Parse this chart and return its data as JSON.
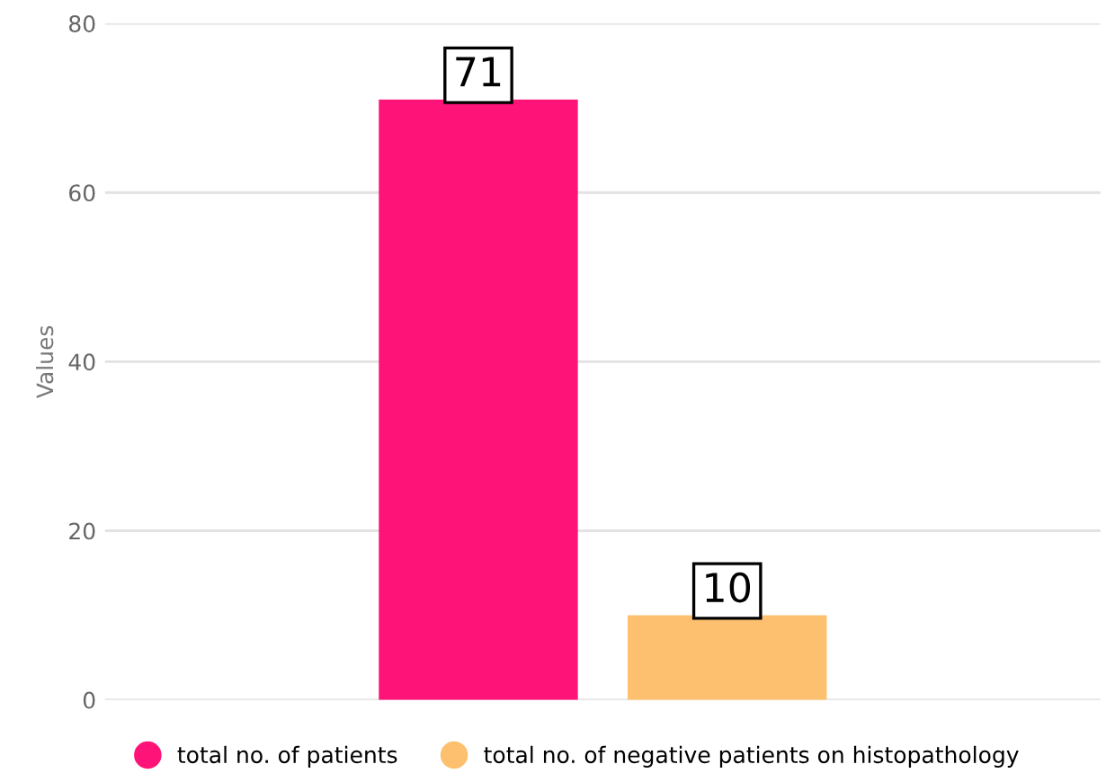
{
  "chart_data": {
    "type": "bar",
    "ylabel": "Values",
    "categories": [
      null
    ],
    "series": [
      {
        "name": "total no. of patients",
        "color": "#fe1478",
        "values": [
          71
        ]
      },
      {
        "name": "total no. of negative patients on histopathology",
        "color": "#fdc06e",
        "values": [
          10
        ]
      }
    ],
    "ylim": [
      0,
      80
    ],
    "yticks": [
      0,
      20,
      40,
      60,
      80
    ],
    "grid": "y",
    "legend": "bottom",
    "data_labels": true
  }
}
